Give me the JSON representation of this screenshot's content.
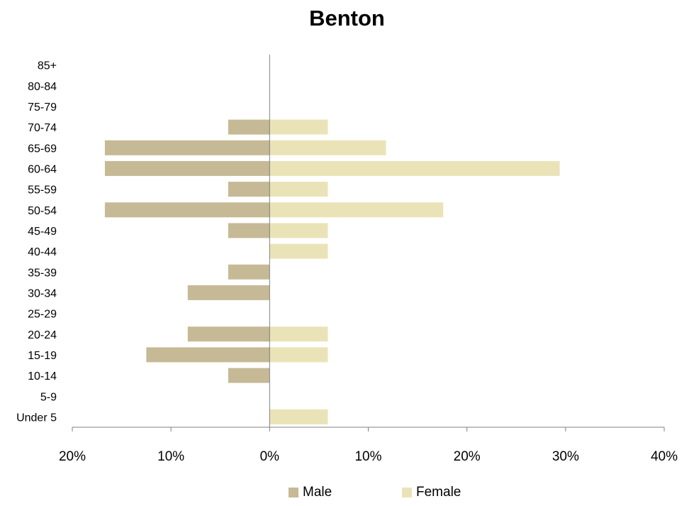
{
  "chart_data": {
    "type": "bar",
    "orientation": "horizontal",
    "title": "Benton",
    "categories": [
      "Under 5",
      "5-9",
      "10-14",
      "15-19",
      "20-24",
      "25-29",
      "30-34",
      "35-39",
      "40-44",
      "45-49",
      "50-54",
      "55-59",
      "60-64",
      "65-69",
      "70-74",
      "75-79",
      "80-84",
      "85+"
    ],
    "series": [
      {
        "name": "Male",
        "color": "#c6b995",
        "values": [
          0,
          0,
          4.2,
          12.5,
          8.3,
          0,
          8.3,
          4.2,
          0,
          4.2,
          16.7,
          4.2,
          16.7,
          16.7,
          4.2,
          0,
          0,
          0
        ]
      },
      {
        "name": "Female",
        "color": "#ebe3b8",
        "values": [
          5.9,
          0,
          0,
          5.9,
          5.9,
          0,
          0,
          0,
          5.9,
          5.9,
          17.6,
          5.9,
          29.4,
          11.8,
          5.9,
          0,
          0,
          0
        ]
      }
    ],
    "xlim": [
      -20,
      40
    ],
    "xticks": [
      -20,
      -10,
      0,
      10,
      20,
      30,
      40
    ],
    "xtick_labels": [
      "20%",
      "10%",
      "0%",
      "10%",
      "20%",
      "30%",
      "40%"
    ],
    "xlabel": "",
    "ylabel": "",
    "grid": false,
    "legend_position": "bottom"
  }
}
